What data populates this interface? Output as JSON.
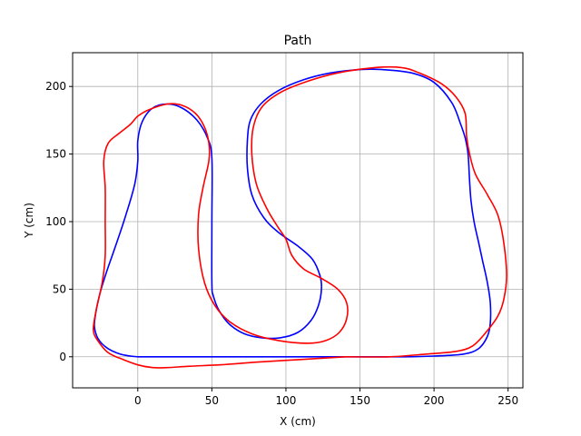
{
  "chart_data": {
    "type": "line",
    "title": "Path",
    "xlabel": "X (cm)",
    "ylabel": "Y (cm)",
    "xlim": [
      -44,
      260
    ],
    "ylim": [
      -23,
      225
    ],
    "xticks": [
      0,
      50,
      100,
      150,
      200,
      250
    ],
    "yticks": [
      0,
      50,
      100,
      150,
      200
    ],
    "grid": true,
    "legend": "none",
    "series": [
      {
        "color": "#0000ff",
        "points": [
          [
            0,
            0
          ],
          [
            50,
            0
          ],
          [
            100,
            0
          ],
          [
            150,
            0
          ],
          [
            180,
            0
          ],
          [
            200,
            0.5
          ],
          [
            220,
            2
          ],
          [
            230,
            6
          ],
          [
            236,
            15
          ],
          [
            238,
            25
          ],
          [
            238,
            40
          ],
          [
            236,
            55
          ],
          [
            233,
            70
          ],
          [
            230,
            85
          ],
          [
            227,
            100
          ],
          [
            225,
            115
          ],
          [
            224,
            130
          ],
          [
            223,
            150
          ],
          [
            221,
            162
          ],
          [
            218,
            172
          ],
          [
            212,
            188
          ],
          [
            200,
            203
          ],
          [
            185,
            210
          ],
          [
            165,
            212.5
          ],
          [
            150,
            212.5
          ],
          [
            130,
            210
          ],
          [
            112,
            205
          ],
          [
            95,
            197
          ],
          [
            83,
            187
          ],
          [
            76,
            175
          ],
          [
            74,
            160
          ],
          [
            74,
            140
          ],
          [
            77,
            120
          ],
          [
            85,
            103
          ],
          [
            95,
            92
          ],
          [
            108,
            82
          ],
          [
            118,
            72
          ],
          [
            123,
            60
          ],
          [
            124,
            50
          ],
          [
            122,
            38
          ],
          [
            117,
            27
          ],
          [
            108,
            18
          ],
          [
            96,
            14
          ],
          [
            84,
            14
          ],
          [
            72,
            17
          ],
          [
            62,
            24
          ],
          [
            55,
            34
          ],
          [
            51,
            45
          ],
          [
            50,
            55
          ],
          [
            50,
            100
          ],
          [
            50,
            147
          ],
          [
            47,
            162
          ],
          [
            40,
            175
          ],
          [
            30,
            184
          ],
          [
            20,
            187
          ],
          [
            10,
            184
          ],
          [
            3,
            174
          ],
          [
            0,
            160
          ],
          [
            0,
            145
          ],
          [
            -2,
            128
          ],
          [
            -8,
            105
          ],
          [
            -15,
            82
          ],
          [
            -21,
            63
          ],
          [
            -26,
            45
          ],
          [
            -29,
            28
          ],
          [
            -29,
            20
          ],
          [
            -26,
            12
          ],
          [
            -20,
            6
          ],
          [
            -12,
            2
          ],
          [
            -5,
            0.5
          ],
          [
            0,
            0
          ]
        ]
      },
      {
        "color": "#ff0000",
        "points": [
          [
            140,
            0
          ],
          [
            110,
            -2
          ],
          [
            80,
            -4
          ],
          [
            55,
            -6
          ],
          [
            35,
            -7
          ],
          [
            20,
            -8
          ],
          [
            10,
            -8
          ],
          [
            0,
            -6
          ],
          [
            -10,
            -2
          ],
          [
            -20,
            3
          ],
          [
            -27,
            12
          ],
          [
            -30,
            20
          ],
          [
            -28,
            35
          ],
          [
            -24,
            55
          ],
          [
            -22,
            75
          ],
          [
            -22,
            100
          ],
          [
            -22,
            125
          ],
          [
            -23,
            145
          ],
          [
            -20,
            158
          ],
          [
            -13,
            165
          ],
          [
            -5,
            172
          ],
          [
            0,
            178
          ],
          [
            8,
            183
          ],
          [
            20,
            187
          ],
          [
            30,
            186
          ],
          [
            39,
            180
          ],
          [
            45,
            170
          ],
          [
            48,
            158
          ],
          [
            48,
            145
          ],
          [
            44,
            125
          ],
          [
            41,
            105
          ],
          [
            41,
            80
          ],
          [
            45,
            55
          ],
          [
            52,
            38
          ],
          [
            62,
            26
          ],
          [
            77,
            17
          ],
          [
            95,
            12
          ],
          [
            115,
            10
          ],
          [
            127,
            12
          ],
          [
            136,
            18
          ],
          [
            141,
            28
          ],
          [
            141,
            40
          ],
          [
            135,
            50
          ],
          [
            124,
            58
          ],
          [
            112,
            65
          ],
          [
            104,
            75
          ],
          [
            100,
            87
          ],
          [
            94,
            97
          ],
          [
            87,
            110
          ],
          [
            80,
            128
          ],
          [
            77,
            150
          ],
          [
            78,
            170
          ],
          [
            84,
            185
          ],
          [
            97,
            196
          ],
          [
            115,
            204
          ],
          [
            135,
            210
          ],
          [
            160,
            214
          ],
          [
            178,
            214
          ],
          [
            190,
            210
          ],
          [
            205,
            202
          ],
          [
            215,
            192
          ],
          [
            221,
            180
          ],
          [
            222,
            163
          ],
          [
            224,
            150
          ],
          [
            228,
            135
          ],
          [
            236,
            120
          ],
          [
            243,
            105
          ],
          [
            247,
            85
          ],
          [
            249,
            60
          ],
          [
            247,
            42
          ],
          [
            243,
            30
          ],
          [
            235,
            18
          ],
          [
            226,
            8
          ],
          [
            215,
            4
          ],
          [
            195,
            2
          ],
          [
            170,
            0
          ],
          [
            140,
            0
          ]
        ]
      }
    ]
  }
}
